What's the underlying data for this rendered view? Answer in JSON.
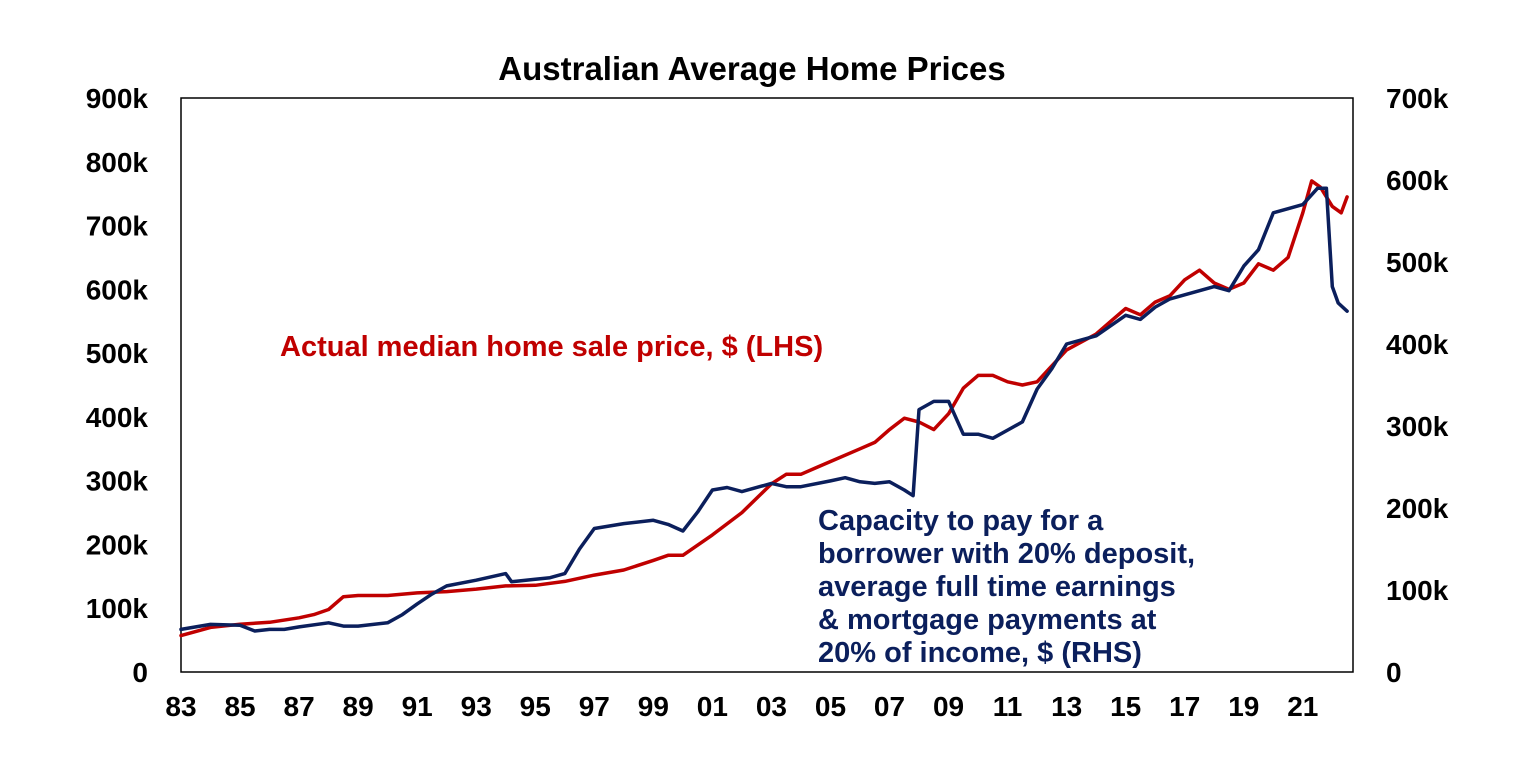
{
  "chart_data": {
    "type": "line",
    "title": "Australian Average Home Prices",
    "xlabel": "",
    "ylabel": "",
    "grid": false,
    "colors": {
      "lhs": "#c00000",
      "rhs": "#0b1f5c"
    },
    "x_range": [
      1983.0,
      2022.7
    ],
    "x_ticks": [
      "83",
      "85",
      "87",
      "89",
      "91",
      "93",
      "95",
      "97",
      "99",
      "01",
      "03",
      "05",
      "07",
      "09",
      "11",
      "13",
      "15",
      "17",
      "19",
      "21"
    ],
    "x_tick_values": [
      1983,
      1985,
      1987,
      1989,
      1991,
      1993,
      1995,
      1997,
      1999,
      2001,
      2003,
      2005,
      2007,
      2009,
      2011,
      2013,
      2015,
      2017,
      2019,
      2021
    ],
    "y_left": {
      "range": [
        0,
        900000
      ],
      "tick_labels": [
        "0",
        "100k",
        "200k",
        "300k",
        "400k",
        "500k",
        "600k",
        "700k",
        "800k",
        "900k"
      ]
    },
    "y_right": {
      "range": [
        0,
        700000
      ],
      "tick_labels": [
        "0",
        "100k",
        "200k",
        "300k",
        "400k",
        "500k",
        "600k",
        "700k"
      ]
    },
    "series": [
      {
        "name": "Actual median home sale price, $ (LHS)",
        "axis": "left",
        "color": "#c00000",
        "x": [
          1983.0,
          1984.0,
          1985.0,
          1986.0,
          1987.0,
          1987.5,
          1988.0,
          1988.5,
          1989.0,
          1989.5,
          1990.0,
          1991.0,
          1992.0,
          1993.0,
          1994.0,
          1995.0,
          1996.0,
          1997.0,
          1998.0,
          1999.0,
          1999.5,
          2000.0,
          2001.0,
          2002.0,
          2003.0,
          2003.5,
          2004.0,
          2004.5,
          2005.0,
          2006.0,
          2006.5,
          2007.0,
          2007.5,
          2008.0,
          2008.5,
          2009.0,
          2009.5,
          2010.0,
          2010.5,
          2011.0,
          2011.5,
          2012.0,
          2013.0,
          2014.0,
          2014.5,
          2015.0,
          2015.5,
          2016.0,
          2016.5,
          2017.0,
          2017.5,
          2018.0,
          2018.5,
          2019.0,
          2019.5,
          2020.0,
          2020.5,
          2021.0,
          2021.3,
          2021.6,
          2022.0,
          2022.3,
          2022.5
        ],
        "y": [
          57000,
          70000,
          75000,
          78000,
          85000,
          90000,
          98000,
          118000,
          120000,
          120000,
          120000,
          124000,
          126000,
          130000,
          135000,
          136000,
          142000,
          152000,
          160000,
          175000,
          183000,
          183000,
          215000,
          250000,
          295000,
          310000,
          310000,
          320000,
          330000,
          350000,
          360000,
          380000,
          398000,
          392000,
          380000,
          405000,
          445000,
          465000,
          465000,
          455000,
          450000,
          455000,
          505000,
          530000,
          550000,
          570000,
          560000,
          580000,
          590000,
          615000,
          630000,
          610000,
          600000,
          610000,
          640000,
          630000,
          650000,
          720000,
          770000,
          760000,
          730000,
          720000,
          745000
        ]
      },
      {
        "name": "Capacity to pay for a borrower with 20% deposit, average full time earnings & mortgage payments at 20% of income, $ (RHS)",
        "axis": "right",
        "color": "#0b1f5c",
        "x": [
          1983.0,
          1984.0,
          1985.0,
          1985.5,
          1986.0,
          1986.5,
          1987.0,
          1988.0,
          1988.5,
          1989.0,
          1990.0,
          1990.5,
          1991.0,
          1991.5,
          1992.0,
          1993.0,
          1994.0,
          1994.2,
          1995.0,
          1995.5,
          1996.0,
          1996.5,
          1997.0,
          1998.0,
          1999.0,
          1999.5,
          2000.0,
          2000.5,
          2001.0,
          2001.5,
          2002.0,
          2003.0,
          2003.5,
          2004.0,
          2005.0,
          2005.5,
          2006.0,
          2006.5,
          2007.0,
          2007.5,
          2007.8,
          2008.0,
          2008.5,
          2009.0,
          2009.5,
          2010.0,
          2010.5,
          2011.0,
          2011.5,
          2012.0,
          2012.5,
          2013.0,
          2014.0,
          2015.0,
          2015.5,
          2016.0,
          2016.5,
          2017.0,
          2017.5,
          2018.0,
          2018.5,
          2019.0,
          2019.5,
          2020.0,
          2020.5,
          2021.0,
          2021.5,
          2021.8,
          2022.0,
          2022.2,
          2022.5
        ],
        "y": [
          52000,
          58000,
          57000,
          50000,
          52000,
          52000,
          55000,
          60000,
          56000,
          56000,
          60000,
          70000,
          83000,
          95000,
          105000,
          112000,
          120000,
          110000,
          113000,
          115000,
          120000,
          150000,
          175000,
          181000,
          185000,
          180000,
          172000,
          195000,
          222000,
          225000,
          220000,
          230000,
          226000,
          226000,
          233000,
          237000,
          232000,
          230000,
          232000,
          222000,
          215000,
          320000,
          330000,
          330000,
          290000,
          290000,
          285000,
          295000,
          305000,
          345000,
          370000,
          400000,
          410000,
          435000,
          430000,
          445000,
          455000,
          460000,
          465000,
          470000,
          465000,
          495000,
          515000,
          560000,
          565000,
          570000,
          590000,
          590000,
          470000,
          450000,
          440000
        ]
      }
    ],
    "annotations": {
      "lhs_label": "Actual median home sale price, $ (LHS)",
      "rhs_label_lines": [
        "Capacity to pay for a",
        "borrower with 20% deposit,",
        "average full time earnings",
        "& mortgage payments at",
        "20% of income, $ (RHS)"
      ]
    }
  }
}
